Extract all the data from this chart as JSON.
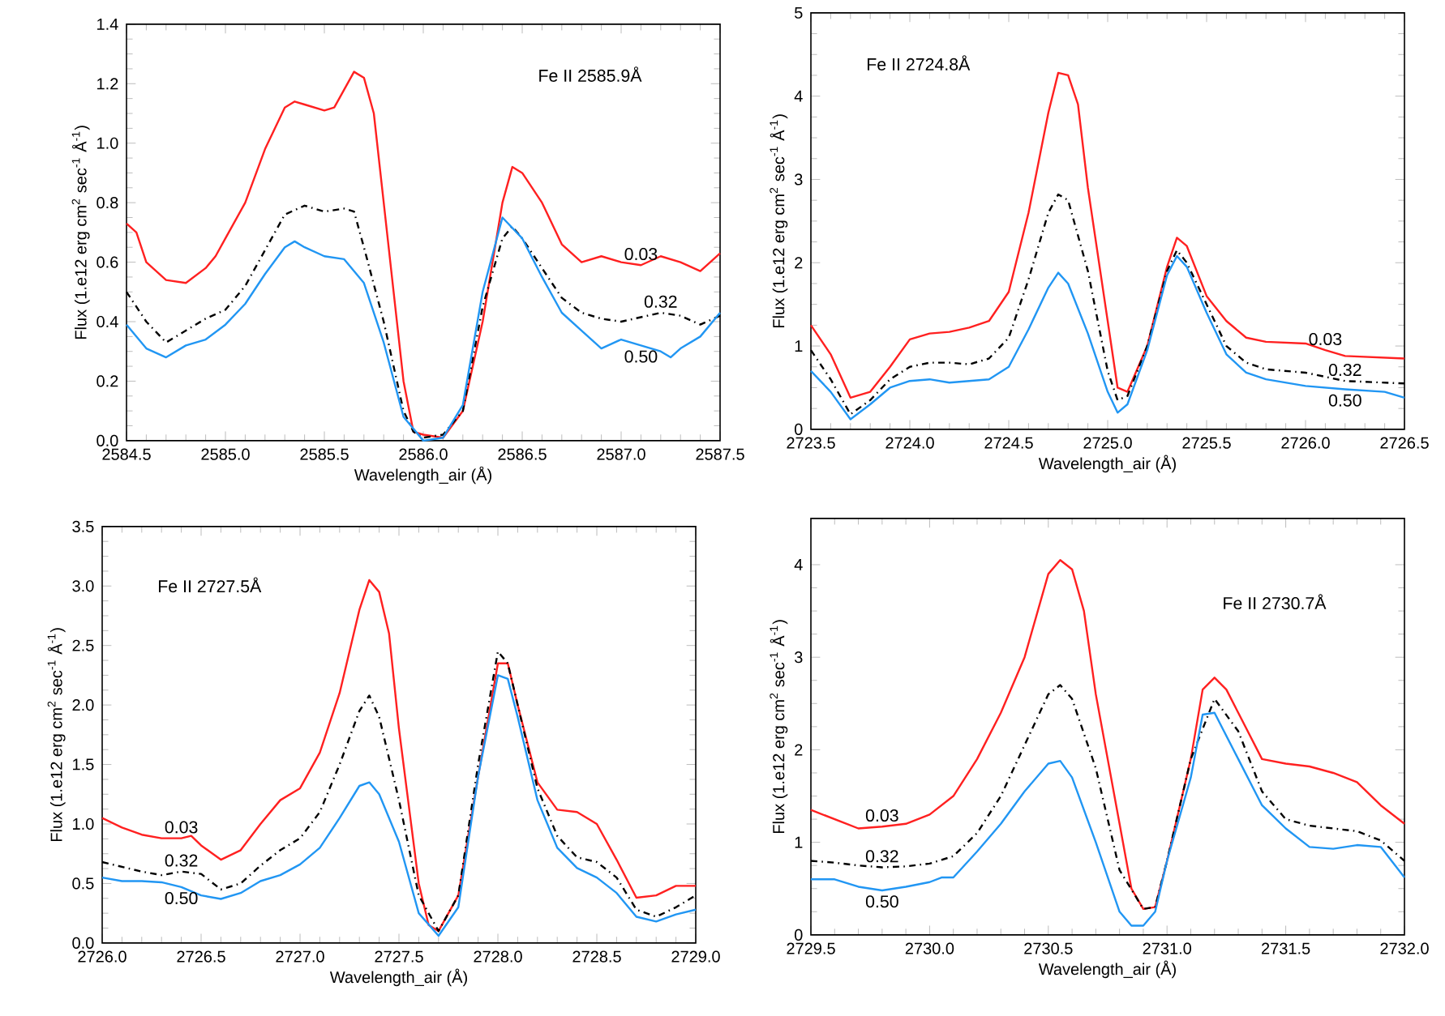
{
  "chart_data": [
    {
      "type": "line",
      "xlabel": "Wavelength_air (Å)",
      "ylabel": "Flux (1.e12 erg cm$^{2}$ sec$^{-1}$ Å$^{-1}$)",
      "annotations": [
        "Fe II 2585.9Å"
      ],
      "xlim": [
        2584.5,
        2587.5
      ],
      "ylim": [
        0.0,
        1.4
      ],
      "xticks": [
        2584.5,
        {
          "value": 2585,
          "label": "2585.0"
        },
        2585.5,
        {
          "value": 2586,
          "label": "2586.0"
        },
        2586.5,
        {
          "value": 2587,
          "label": "2587.0"
        },
        2587.5
      ],
      "yticks": [
        {
          "value": 0,
          "label": "0.0"
        },
        0.2,
        0.4,
        0.6,
        0.8,
        {
          "value": 1,
          "label": "1.0"
        },
        1.2,
        1.4
      ],
      "series": [
        {
          "name": "0.03",
          "color": "#ff2020",
          "line_style": "solid",
          "x": [
            2584.5,
            2584.55,
            2584.6,
            2584.7,
            2584.8,
            2584.9,
            2584.95,
            2585.0,
            2585.1,
            2585.2,
            2585.3,
            2585.35,
            2585.4,
            2585.5,
            2585.55,
            2585.6,
            2585.65,
            2585.7,
            2585.75,
            2585.8,
            2585.85,
            2585.9,
            2585.95,
            2586.0,
            2586.1,
            2586.2,
            2586.3,
            2586.4,
            2586.45,
            2586.5,
            2586.6,
            2586.7,
            2586.8,
            2586.9,
            2587.0,
            2587.1,
            2587.2,
            2587.3,
            2587.4,
            2587.5
          ],
          "values": [
            0.73,
            0.7,
            0.6,
            0.54,
            0.53,
            0.58,
            0.62,
            0.68,
            0.8,
            0.98,
            1.12,
            1.14,
            1.13,
            1.11,
            1.12,
            1.18,
            1.24,
            1.22,
            1.1,
            0.8,
            0.5,
            0.2,
            0.03,
            0.02,
            0.01,
            0.1,
            0.4,
            0.8,
            0.92,
            0.9,
            0.8,
            0.66,
            0.6,
            0.62,
            0.6,
            0.59,
            0.62,
            0.6,
            0.57,
            0.63
          ]
        },
        {
          "name": "0.32",
          "color": "#000000",
          "line_style": "dashdot",
          "x": [
            2584.5,
            2584.6,
            2584.7,
            2584.8,
            2584.9,
            2585.0,
            2585.1,
            2585.2,
            2585.3,
            2585.4,
            2585.5,
            2585.6,
            2585.65,
            2585.7,
            2585.8,
            2585.9,
            2585.95,
            2586.0,
            2586.1,
            2586.2,
            2586.3,
            2586.4,
            2586.45,
            2586.5,
            2586.6,
            2586.7,
            2586.8,
            2586.9,
            2587.0,
            2587.2,
            2587.3,
            2587.4,
            2587.5
          ],
          "values": [
            0.5,
            0.4,
            0.33,
            0.37,
            0.41,
            0.44,
            0.52,
            0.64,
            0.76,
            0.79,
            0.77,
            0.78,
            0.77,
            0.65,
            0.4,
            0.1,
            0.03,
            0.01,
            0.02,
            0.1,
            0.45,
            0.68,
            0.72,
            0.68,
            0.58,
            0.48,
            0.43,
            0.41,
            0.4,
            0.43,
            0.42,
            0.39,
            0.42
          ]
        },
        {
          "name": "0.50",
          "color": "#2196f3",
          "line_style": "solid",
          "x": [
            2584.5,
            2584.6,
            2584.7,
            2584.8,
            2584.9,
            2585.0,
            2585.1,
            2585.2,
            2585.3,
            2585.35,
            2585.4,
            2585.5,
            2585.6,
            2585.7,
            2585.8,
            2585.9,
            2586.0,
            2586.1,
            2586.2,
            2586.3,
            2586.4,
            2586.5,
            2586.6,
            2586.7,
            2586.8,
            2586.9,
            2587.0,
            2587.1,
            2587.2,
            2587.25,
            2587.3,
            2587.4,
            2587.5
          ],
          "values": [
            0.39,
            0.31,
            0.28,
            0.32,
            0.34,
            0.39,
            0.46,
            0.56,
            0.65,
            0.67,
            0.65,
            0.62,
            0.61,
            0.53,
            0.33,
            0.08,
            0.0,
            0.01,
            0.12,
            0.5,
            0.75,
            0.68,
            0.55,
            0.43,
            0.37,
            0.31,
            0.34,
            0.32,
            0.3,
            0.28,
            0.31,
            0.35,
            0.43
          ]
        }
      ]
    },
    {
      "type": "line",
      "xlabel": "Wavelength_air (Å)",
      "ylabel": "Flux (1.e12 erg cm$^{2}$ sec$^{-1}$ Å$^{-1}$)",
      "annotations": [
        "Fe II 2724.8Å"
      ],
      "xlim": [
        2723.5,
        2726.5
      ],
      "ylim": [
        0,
        5
      ],
      "xticks": [
        2723.5,
        {
          "value": 2724,
          "label": "2724.0"
        },
        2724.5,
        {
          "value": 2725,
          "label": "2725.0"
        },
        2725.5,
        {
          "value": 2726,
          "label": "2726.0"
        },
        2726.5
      ],
      "yticks": [
        0,
        1,
        2,
        3,
        4,
        5
      ],
      "series": [
        {
          "name": "0.03",
          "color": "#ff2020",
          "line_style": "solid",
          "x": [
            2723.5,
            2723.6,
            2723.7,
            2723.8,
            2723.9,
            2724.0,
            2724.1,
            2724.2,
            2724.3,
            2724.4,
            2724.5,
            2724.6,
            2724.7,
            2724.75,
            2724.8,
            2724.85,
            2724.9,
            2725.0,
            2725.05,
            2725.1,
            2725.2,
            2725.3,
            2725.35,
            2725.4,
            2725.5,
            2725.6,
            2725.7,
            2725.8,
            2726.0,
            2726.1,
            2726.2,
            2726.5
          ],
          "values": [
            1.25,
            0.9,
            0.38,
            0.45,
            0.75,
            1.08,
            1.15,
            1.17,
            1.22,
            1.3,
            1.65,
            2.6,
            3.8,
            4.28,
            4.25,
            3.9,
            2.9,
            1.3,
            0.5,
            0.45,
            1.0,
            1.95,
            2.3,
            2.2,
            1.6,
            1.3,
            1.1,
            1.05,
            1.03,
            0.95,
            0.88,
            0.85
          ]
        },
        {
          "name": "0.32",
          "color": "#000000",
          "line_style": "dashdot",
          "x": [
            2723.5,
            2723.6,
            2723.7,
            2723.8,
            2723.9,
            2724.0,
            2724.1,
            2724.2,
            2724.3,
            2724.4,
            2724.5,
            2724.6,
            2724.7,
            2724.75,
            2724.8,
            2724.9,
            2725.0,
            2725.05,
            2725.1,
            2725.2,
            2725.3,
            2725.35,
            2725.4,
            2725.5,
            2725.6,
            2725.7,
            2725.8,
            2726.0,
            2726.2,
            2726.5
          ],
          "values": [
            0.95,
            0.6,
            0.18,
            0.35,
            0.6,
            0.75,
            0.8,
            0.8,
            0.78,
            0.85,
            1.1,
            1.8,
            2.6,
            2.82,
            2.75,
            1.9,
            0.7,
            0.35,
            0.4,
            1.0,
            1.9,
            2.15,
            2.0,
            1.5,
            1.0,
            0.8,
            0.72,
            0.68,
            0.58,
            0.55
          ]
        },
        {
          "name": "0.50",
          "color": "#2196f3",
          "line_style": "solid",
          "x": [
            2723.5,
            2723.6,
            2723.7,
            2723.8,
            2723.9,
            2724.0,
            2724.1,
            2724.2,
            2724.3,
            2724.4,
            2724.5,
            2724.6,
            2724.7,
            2724.75,
            2724.8,
            2724.9,
            2725.0,
            2725.05,
            2725.1,
            2725.2,
            2725.3,
            2725.35,
            2725.4,
            2725.5,
            2725.6,
            2725.7,
            2725.8,
            2726.0,
            2726.2,
            2726.4,
            2726.5
          ],
          "values": [
            0.7,
            0.45,
            0.12,
            0.3,
            0.5,
            0.58,
            0.6,
            0.56,
            0.58,
            0.6,
            0.75,
            1.2,
            1.7,
            1.88,
            1.75,
            1.15,
            0.45,
            0.2,
            0.3,
            0.95,
            1.85,
            2.08,
            1.95,
            1.4,
            0.9,
            0.68,
            0.6,
            0.52,
            0.48,
            0.45,
            0.38
          ]
        }
      ]
    },
    {
      "type": "line",
      "xlabel": "Wavelength_air (Å)",
      "ylabel": "Flux (1.e12 erg cm$^{2}$ sec$^{-1}$ Å$^{-1}$)",
      "annotations": [
        "Fe II 2727.5Å"
      ],
      "xlim": [
        2726.0,
        2729.0
      ],
      "ylim": [
        0.0,
        3.5
      ],
      "xticks": [
        {
          "value": 2726,
          "label": "2726.0"
        },
        2726.5,
        {
          "value": 2727,
          "label": "2727.0"
        },
        2727.5,
        {
          "value": 2728,
          "label": "2728.0"
        },
        2728.5,
        {
          "value": 2729,
          "label": "2729.0"
        }
      ],
      "yticks": [
        {
          "value": 0,
          "label": "0.0"
        },
        0.5,
        {
          "value": 1,
          "label": "1.0"
        },
        1.5,
        {
          "value": 2,
          "label": "2.0"
        },
        2.5,
        {
          "value": 3,
          "label": "3.0"
        },
        3.5
      ],
      "series": [
        {
          "name": "0.03",
          "color": "#ff2020",
          "line_style": "solid",
          "x": [
            2726.0,
            2726.1,
            2726.2,
            2726.3,
            2726.4,
            2726.45,
            2726.5,
            2726.6,
            2726.7,
            2726.8,
            2726.9,
            2727.0,
            2727.1,
            2727.2,
            2727.3,
            2727.35,
            2727.4,
            2727.45,
            2727.5,
            2727.6,
            2727.65,
            2727.7,
            2727.8,
            2727.9,
            2728.0,
            2728.05,
            2728.1,
            2728.2,
            2728.3,
            2728.4,
            2728.5,
            2728.6,
            2728.7,
            2728.8,
            2728.9,
            2729.0
          ],
          "values": [
            1.05,
            0.97,
            0.91,
            0.88,
            0.88,
            0.9,
            0.82,
            0.7,
            0.78,
            1.0,
            1.2,
            1.3,
            1.6,
            2.1,
            2.8,
            3.05,
            2.95,
            2.6,
            1.8,
            0.5,
            0.15,
            0.1,
            0.4,
            1.4,
            2.35,
            2.35,
            2.0,
            1.35,
            1.12,
            1.1,
            1.0,
            0.7,
            0.38,
            0.4,
            0.48,
            0.48
          ]
        },
        {
          "name": "0.32",
          "color": "#000000",
          "line_style": "dashdot",
          "x": [
            2726.0,
            2726.2,
            2726.3,
            2726.4,
            2726.5,
            2726.6,
            2726.7,
            2726.8,
            2726.9,
            2727.0,
            2727.1,
            2727.2,
            2727.3,
            2727.35,
            2727.4,
            2727.5,
            2727.6,
            2727.7,
            2727.8,
            2727.9,
            2728.0,
            2728.05,
            2728.1,
            2728.2,
            2728.3,
            2728.4,
            2728.5,
            2728.6,
            2728.7,
            2728.8,
            2728.9,
            2729.0
          ],
          "values": [
            0.68,
            0.6,
            0.57,
            0.6,
            0.58,
            0.45,
            0.5,
            0.65,
            0.78,
            0.88,
            1.1,
            1.5,
            1.95,
            2.08,
            1.9,
            1.2,
            0.4,
            0.1,
            0.4,
            1.5,
            2.45,
            2.35,
            2.0,
            1.3,
            0.9,
            0.72,
            0.68,
            0.55,
            0.28,
            0.22,
            0.3,
            0.4
          ]
        },
        {
          "name": "0.50",
          "color": "#2196f3",
          "line_style": "solid",
          "x": [
            2726.0,
            2726.1,
            2726.2,
            2726.3,
            2726.4,
            2726.5,
            2726.6,
            2726.7,
            2726.8,
            2726.9,
            2727.0,
            2727.1,
            2727.2,
            2727.3,
            2727.35,
            2727.4,
            2727.5,
            2727.6,
            2727.7,
            2727.8,
            2727.9,
            2728.0,
            2728.05,
            2728.1,
            2728.2,
            2728.3,
            2728.4,
            2728.5,
            2728.6,
            2728.7,
            2728.8,
            2728.9,
            2729.0
          ],
          "values": [
            0.55,
            0.52,
            0.52,
            0.51,
            0.47,
            0.4,
            0.37,
            0.42,
            0.52,
            0.57,
            0.66,
            0.8,
            1.05,
            1.32,
            1.35,
            1.25,
            0.85,
            0.25,
            0.06,
            0.3,
            1.4,
            2.25,
            2.22,
            1.9,
            1.2,
            0.8,
            0.63,
            0.55,
            0.42,
            0.22,
            0.18,
            0.24,
            0.28
          ]
        }
      ]
    },
    {
      "type": "line",
      "xlabel": "Wavelength_air (Å)",
      "ylabel": "Flux (1.e12 erg cm$^{2}$ sec$^{-1}$ Å$^{-1}$)",
      "annotations": [
        "Fe II 2730.7Å"
      ],
      "xlim": [
        2729.5,
        2732.0
      ],
      "ylim": [
        0,
        4.5
      ],
      "xticks": [
        2729.5,
        {
          "value": 2730,
          "label": "2730.0"
        },
        2730.5,
        {
          "value": 2731,
          "label": "2731.0"
        },
        2731.5,
        {
          "value": 2732,
          "label": "2732.0"
        }
      ],
      "yticks": [
        0,
        1,
        2,
        3,
        4
      ],
      "series": [
        {
          "name": "0.03",
          "color": "#ff2020",
          "line_style": "solid",
          "x": [
            2729.5,
            2729.6,
            2729.7,
            2729.8,
            2729.9,
            2730.0,
            2730.1,
            2730.2,
            2730.3,
            2730.4,
            2730.5,
            2730.55,
            2730.6,
            2730.65,
            2730.7,
            2730.8,
            2730.85,
            2730.9,
            2730.95,
            2731.0,
            2731.1,
            2731.15,
            2731.2,
            2731.25,
            2731.3,
            2731.4,
            2731.5,
            2731.6,
            2731.7,
            2731.8,
            2731.9,
            2732.0
          ],
          "values": [
            1.35,
            1.25,
            1.15,
            1.17,
            1.2,
            1.3,
            1.5,
            1.9,
            2.4,
            3.0,
            3.9,
            4.05,
            3.95,
            3.5,
            2.6,
            1.2,
            0.5,
            0.28,
            0.3,
            0.8,
            1.9,
            2.65,
            2.78,
            2.65,
            2.4,
            1.9,
            1.85,
            1.82,
            1.75,
            1.65,
            1.4,
            1.2
          ]
        },
        {
          "name": "0.32",
          "color": "#000000",
          "line_style": "dashdot",
          "x": [
            2729.5,
            2729.6,
            2729.7,
            2729.8,
            2729.9,
            2730.0,
            2730.1,
            2730.2,
            2730.3,
            2730.4,
            2730.5,
            2730.55,
            2730.6,
            2730.7,
            2730.8,
            2730.9,
            2730.95,
            2731.0,
            2731.1,
            2731.2,
            2731.3,
            2731.4,
            2731.5,
            2731.6,
            2731.7,
            2731.8,
            2731.9,
            2732.0
          ],
          "values": [
            0.8,
            0.78,
            0.75,
            0.73,
            0.74,
            0.77,
            0.85,
            1.1,
            1.5,
            2.05,
            2.6,
            2.7,
            2.55,
            1.8,
            0.7,
            0.28,
            0.3,
            0.8,
            1.9,
            2.55,
            2.2,
            1.55,
            1.25,
            1.18,
            1.15,
            1.12,
            1.02,
            0.8
          ]
        },
        {
          "name": "0.50",
          "color": "#2196f3",
          "line_style": "solid",
          "x": [
            2729.5,
            2729.6,
            2729.7,
            2729.8,
            2729.9,
            2730.0,
            2730.05,
            2730.1,
            2730.2,
            2730.3,
            2730.4,
            2730.5,
            2730.55,
            2730.6,
            2730.7,
            2730.8,
            2730.85,
            2730.9,
            2730.95,
            2731.0,
            2731.1,
            2731.15,
            2731.2,
            2731.3,
            2731.4,
            2731.5,
            2731.6,
            2731.7,
            2731.8,
            2731.9,
            2732.0
          ],
          "values": [
            0.6,
            0.6,
            0.52,
            0.48,
            0.52,
            0.57,
            0.62,
            0.62,
            0.9,
            1.2,
            1.55,
            1.85,
            1.88,
            1.7,
            1.0,
            0.25,
            0.1,
            0.1,
            0.25,
            0.8,
            1.7,
            2.38,
            2.4,
            1.9,
            1.4,
            1.15,
            0.95,
            0.93,
            0.97,
            0.95,
            0.62
          ]
        }
      ]
    }
  ]
}
